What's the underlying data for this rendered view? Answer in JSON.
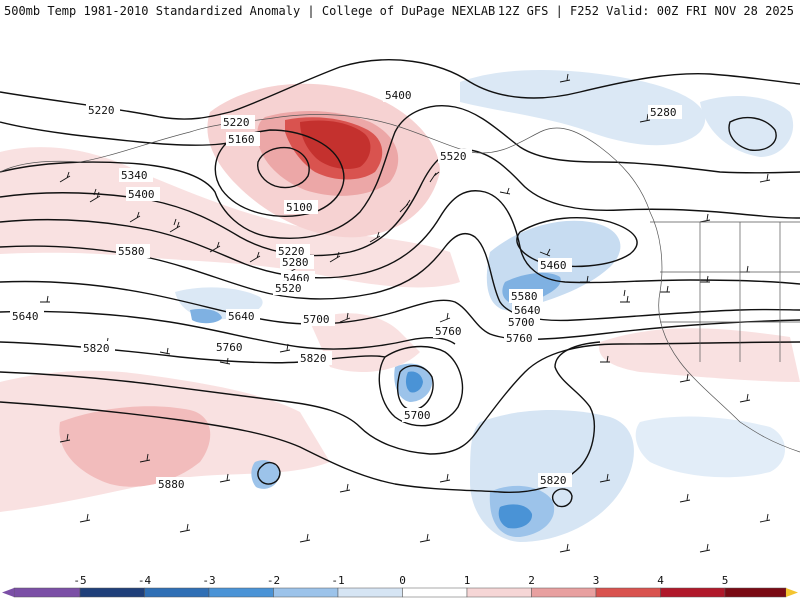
{
  "header": {
    "left": "500mb Temp 1981-2010 Standardized Anomaly | College of DuPage NEXLAB",
    "right": "12Z GFS | F252 Valid: 00Z FRI NOV 28 2025"
  },
  "height_labels": [
    "5220",
    "5220",
    "5160",
    "5100",
    "5340",
    "5400",
    "5580",
    "5220",
    "5280",
    "5460",
    "5520",
    "5640",
    "5640",
    "5700",
    "5820",
    "5760",
    "5820",
    "5760",
    "5700",
    "5400",
    "5520",
    "5460",
    "5580",
    "5640",
    "5700",
    "5760",
    "5280",
    "5880",
    "5820"
  ],
  "colorbar": {
    "ticks": [
      "-5",
      "-4",
      "-3",
      "-2",
      "-1",
      "0",
      "1",
      "2",
      "3",
      "4",
      "5"
    ],
    "colors": [
      "#7b4fa6",
      "#1f3f7a",
      "#2f6fb5",
      "#4a93d6",
      "#9cc3ea",
      "#d6e5f4",
      "#ffffff",
      "#f6d6d6",
      "#e8a0a0",
      "#d9534f",
      "#b0182a",
      "#7a0a14",
      "#f4c430"
    ]
  }
}
